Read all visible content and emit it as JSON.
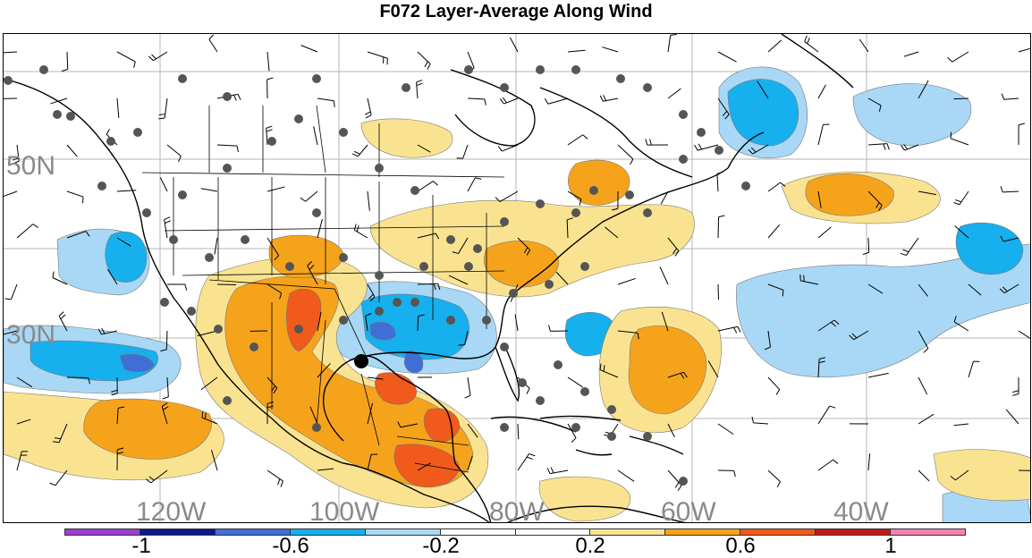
{
  "title": "F072 Layer-Average Along Wind",
  "map": {
    "lon_labels": [
      "120W",
      "100W",
      "80W",
      "60W",
      "40W"
    ],
    "lat_labels": [
      "50N",
      "30N"
    ],
    "colors": {
      "land_outline": "#000000",
      "grid": "#aaaaaa",
      "station": "#555555"
    }
  },
  "colorbar": {
    "colors": [
      "#9b3fd0",
      "#0a1a8c",
      "#3f6fd6",
      "#16b0ee",
      "#a8d8f5",
      "#ffffff",
      "#ffffff",
      "#fae390",
      "#f6a31c",
      "#f05a1a",
      "#c01a1a",
      "#f282b4"
    ],
    "tick_labels": [
      "-1",
      "-0.6",
      "-0.2",
      "0.2",
      "0.6",
      "1"
    ]
  },
  "chart_data": {
    "type": "heatmap",
    "title": "F072 Layer-Average Along Wind",
    "levels": [
      -1,
      -0.8,
      -0.6,
      -0.4,
      -0.2,
      0,
      0.2,
      0.4,
      0.6,
      0.8,
      1
    ],
    "x_ticks": [
      "120W",
      "100W",
      "80W",
      "60W",
      "40W"
    ],
    "y_ticks": [
      "50N",
      "30N"
    ],
    "extent": {
      "lon": [
        -133,
        -20
      ],
      "lat": [
        10,
        65
      ]
    }
  }
}
